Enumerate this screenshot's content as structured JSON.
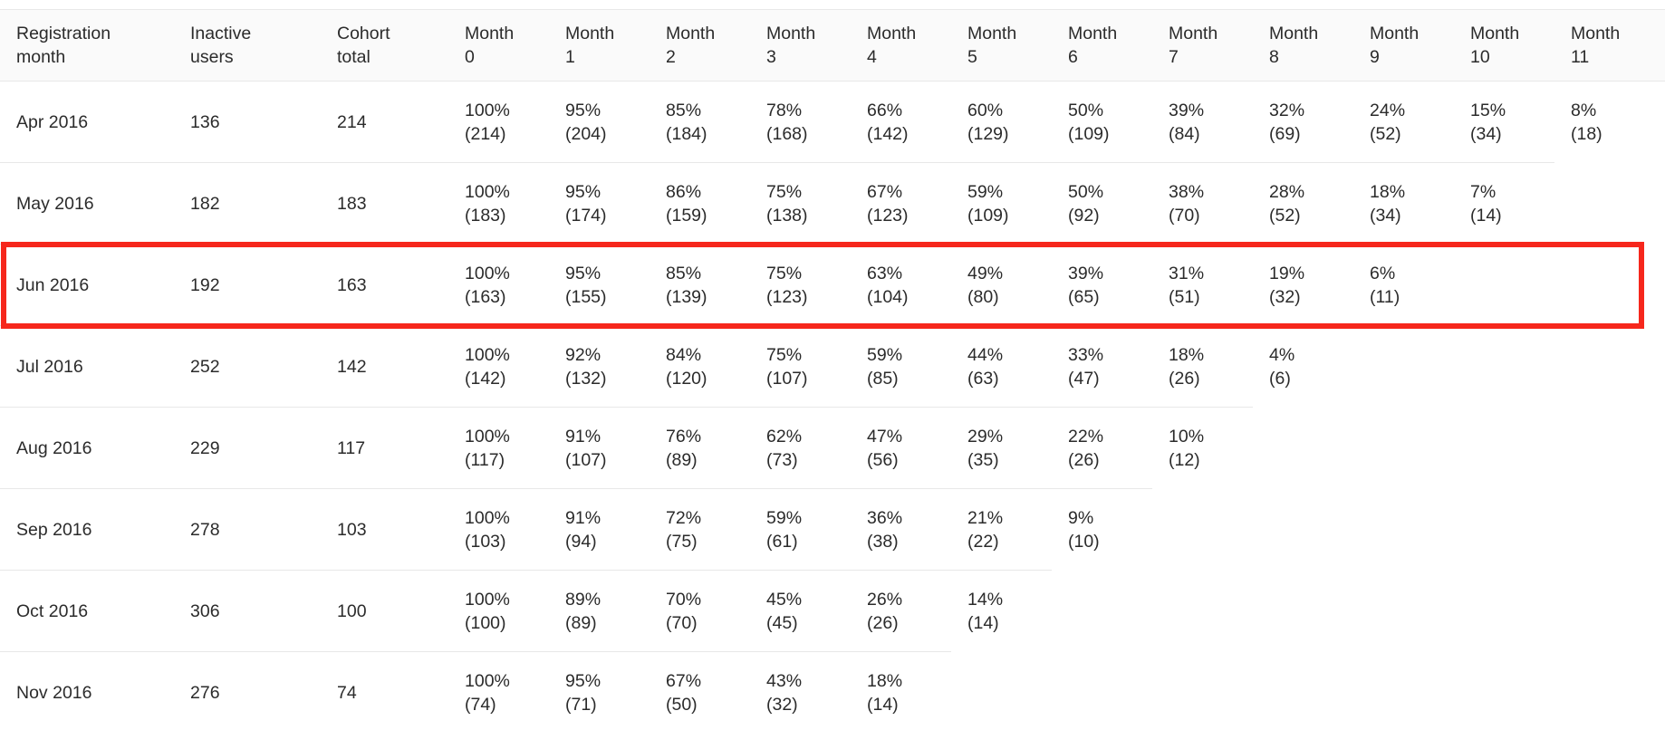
{
  "table": {
    "columns": [
      {
        "id": "registration-month",
        "label_lines": [
          "Registration",
          "month"
        ]
      },
      {
        "id": "inactive-users",
        "label_lines": [
          "Inactive",
          "users"
        ]
      },
      {
        "id": "cohort-total",
        "label_lines": [
          "Cohort",
          "total"
        ]
      },
      {
        "id": "month-0",
        "label_lines": [
          "Month",
          "0"
        ]
      },
      {
        "id": "month-1",
        "label_lines": [
          "Month",
          "1"
        ]
      },
      {
        "id": "month-2",
        "label_lines": [
          "Month",
          "2"
        ]
      },
      {
        "id": "month-3",
        "label_lines": [
          "Month",
          "3"
        ]
      },
      {
        "id": "month-4",
        "label_lines": [
          "Month",
          "4"
        ]
      },
      {
        "id": "month-5",
        "label_lines": [
          "Month",
          "5"
        ]
      },
      {
        "id": "month-6",
        "label_lines": [
          "Month",
          "6"
        ]
      },
      {
        "id": "month-7",
        "label_lines": [
          "Month",
          "7"
        ]
      },
      {
        "id": "month-8",
        "label_lines": [
          "Month",
          "8"
        ]
      },
      {
        "id": "month-9",
        "label_lines": [
          "Month",
          "9"
        ]
      },
      {
        "id": "month-10",
        "label_lines": [
          "Month",
          "10"
        ]
      },
      {
        "id": "month-11",
        "label_lines": [
          "Month",
          "11"
        ]
      }
    ],
    "rows": [
      {
        "registration_month": "Apr 2016",
        "inactive_users": "136",
        "cohort_total": "214",
        "months": [
          {
            "pct": "100%",
            "count": "(214)"
          },
          {
            "pct": "95%",
            "count": "(204)"
          },
          {
            "pct": "85%",
            "count": "(184)"
          },
          {
            "pct": "78%",
            "count": "(168)"
          },
          {
            "pct": "66%",
            "count": "(142)"
          },
          {
            "pct": "60%",
            "count": "(129)"
          },
          {
            "pct": "50%",
            "count": "(109)"
          },
          {
            "pct": "39%",
            "count": "(84)"
          },
          {
            "pct": "32%",
            "count": "(69)"
          },
          {
            "pct": "24%",
            "count": "(52)"
          },
          {
            "pct": "15%",
            "count": "(34)"
          },
          {
            "pct": "8%",
            "count": "(18)"
          }
        ]
      },
      {
        "registration_month": "May 2016",
        "inactive_users": "182",
        "cohort_total": "183",
        "months": [
          {
            "pct": "100%",
            "count": "(183)"
          },
          {
            "pct": "95%",
            "count": "(174)"
          },
          {
            "pct": "86%",
            "count": "(159)"
          },
          {
            "pct": "75%",
            "count": "(138)"
          },
          {
            "pct": "67%",
            "count": "(123)"
          },
          {
            "pct": "59%",
            "count": "(109)"
          },
          {
            "pct": "50%",
            "count": "(92)"
          },
          {
            "pct": "38%",
            "count": "(70)"
          },
          {
            "pct": "28%",
            "count": "(52)"
          },
          {
            "pct": "18%",
            "count": "(34)"
          },
          {
            "pct": "7%",
            "count": "(14)"
          },
          null
        ]
      },
      {
        "registration_month": "Jun 2016",
        "inactive_users": "192",
        "cohort_total": "163",
        "months": [
          {
            "pct": "100%",
            "count": "(163)"
          },
          {
            "pct": "95%",
            "count": "(155)"
          },
          {
            "pct": "85%",
            "count": "(139)"
          },
          {
            "pct": "75%",
            "count": "(123)"
          },
          {
            "pct": "63%",
            "count": "(104)"
          },
          {
            "pct": "49%",
            "count": "(80)"
          },
          {
            "pct": "39%",
            "count": "(65)"
          },
          {
            "pct": "31%",
            "count": "(51)"
          },
          {
            "pct": "19%",
            "count": "(32)"
          },
          {
            "pct": "6%",
            "count": "(11)"
          },
          null,
          null
        ]
      },
      {
        "registration_month": "Jul 2016",
        "inactive_users": "252",
        "cohort_total": "142",
        "months": [
          {
            "pct": "100%",
            "count": "(142)"
          },
          {
            "pct": "92%",
            "count": "(132)"
          },
          {
            "pct": "84%",
            "count": "(120)"
          },
          {
            "pct": "75%",
            "count": "(107)"
          },
          {
            "pct": "59%",
            "count": "(85)"
          },
          {
            "pct": "44%",
            "count": "(63)"
          },
          {
            "pct": "33%",
            "count": "(47)"
          },
          {
            "pct": "18%",
            "count": "(26)"
          },
          {
            "pct": "4%",
            "count": "(6)"
          },
          null,
          null,
          null
        ]
      },
      {
        "registration_month": "Aug 2016",
        "inactive_users": "229",
        "cohort_total": "117",
        "months": [
          {
            "pct": "100%",
            "count": "(117)"
          },
          {
            "pct": "91%",
            "count": "(107)"
          },
          {
            "pct": "76%",
            "count": "(89)"
          },
          {
            "pct": "62%",
            "count": "(73)"
          },
          {
            "pct": "47%",
            "count": "(56)"
          },
          {
            "pct": "29%",
            "count": "(35)"
          },
          {
            "pct": "22%",
            "count": "(26)"
          },
          {
            "pct": "10%",
            "count": "(12)"
          },
          null,
          null,
          null,
          null
        ]
      },
      {
        "registration_month": "Sep 2016",
        "inactive_users": "278",
        "cohort_total": "103",
        "months": [
          {
            "pct": "100%",
            "count": "(103)"
          },
          {
            "pct": "91%",
            "count": "(94)"
          },
          {
            "pct": "72%",
            "count": "(75)"
          },
          {
            "pct": "59%",
            "count": "(61)"
          },
          {
            "pct": "36%",
            "count": "(38)"
          },
          {
            "pct": "21%",
            "count": "(22)"
          },
          {
            "pct": "9%",
            "count": "(10)"
          },
          null,
          null,
          null,
          null,
          null
        ]
      },
      {
        "registration_month": "Oct 2016",
        "inactive_users": "306",
        "cohort_total": "100",
        "months": [
          {
            "pct": "100%",
            "count": "(100)"
          },
          {
            "pct": "89%",
            "count": "(89)"
          },
          {
            "pct": "70%",
            "count": "(70)"
          },
          {
            "pct": "45%",
            "count": "(45)"
          },
          {
            "pct": "26%",
            "count": "(26)"
          },
          {
            "pct": "14%",
            "count": "(14)"
          },
          null,
          null,
          null,
          null,
          null,
          null
        ]
      },
      {
        "registration_month": "Nov 2016",
        "inactive_users": "276",
        "cohort_total": "74",
        "months": [
          {
            "pct": "100%",
            "count": "(74)"
          },
          {
            "pct": "95%",
            "count": "(71)"
          },
          {
            "pct": "67%",
            "count": "(50)"
          },
          {
            "pct": "43%",
            "count": "(32)"
          },
          {
            "pct": "18%",
            "count": "(14)"
          },
          null,
          null,
          null,
          null,
          null,
          null,
          null
        ]
      }
    ]
  },
  "highlight": {
    "row_label": "Jun 2016",
    "color": "#f6271c"
  },
  "colors": {
    "header_background": "#fafafa",
    "row_border": "#e8e8e8",
    "text": "#2b2b2b"
  }
}
